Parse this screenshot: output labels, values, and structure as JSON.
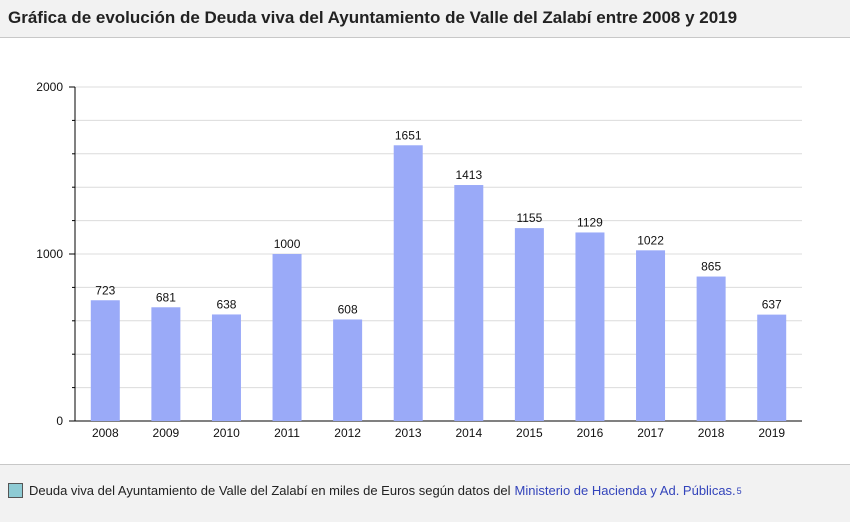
{
  "header": {
    "title": "Gráfica de evolución de Deuda viva del Ayuntamiento de Valle del Zalabí entre 2008 y 2019"
  },
  "legend": {
    "text": "Deuda viva del Ayuntamiento de Valle del Zalabí en miles de Euros según datos del",
    "link_text": "Ministerio de Hacienda y Ad. Públicas.",
    "ref": "5",
    "swatch_color": "#8ecbd4"
  },
  "colors": {
    "bar": "#9aaaf8",
    "grid": "#dcdcdc",
    "axis": "#000000",
    "label": "#111111"
  },
  "chart_data": {
    "type": "bar",
    "title": "Gráfica de evolución de Deuda viva del Ayuntamiento de Valle del Zalabí entre 2008 y 2019",
    "xlabel": "",
    "ylabel": "",
    "categories": [
      "2008",
      "2009",
      "2010",
      "2011",
      "2012",
      "2013",
      "2014",
      "2015",
      "2016",
      "2017",
      "2018",
      "2019"
    ],
    "series": [
      {
        "name": "Deuda viva (miles de Euros)",
        "values": [
          723,
          681,
          638,
          1000,
          608,
          1651,
          1413,
          1155,
          1129,
          1022,
          865,
          637
        ]
      }
    ],
    "ylim": [
      0,
      2000
    ],
    "yticks": [
      0,
      1000,
      2000
    ],
    "grid": true
  }
}
